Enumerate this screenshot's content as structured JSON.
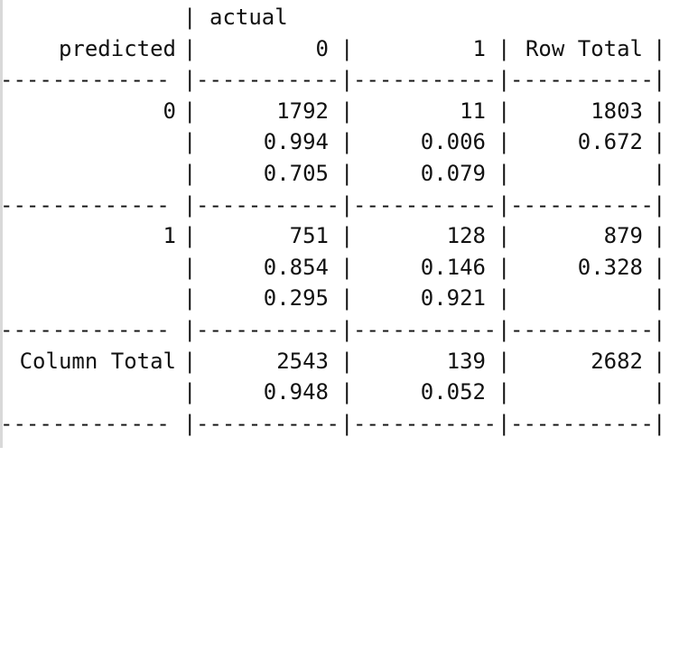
{
  "crosstab": {
    "header": {
      "actual_label": "actual",
      "predicted_label": "predicted",
      "col_0": "0",
      "col_1": "1",
      "row_total_label": "Row Total"
    },
    "rows": [
      {
        "label": "0",
        "counts": [
          "1792",
          "11",
          "1803"
        ],
        "row_props": [
          "0.994",
          "0.006",
          "0.672"
        ],
        "col_props": [
          "0.705",
          "0.079",
          ""
        ]
      },
      {
        "label": "1",
        "counts": [
          "751",
          "128",
          "879"
        ],
        "row_props": [
          "0.854",
          "0.146",
          "0.328"
        ],
        "col_props": [
          "0.295",
          "0.921",
          ""
        ]
      }
    ],
    "column_total": {
      "label": "Column Total",
      "counts": [
        "2543",
        "139",
        "2682"
      ],
      "props": [
        "0.948",
        "0.052",
        ""
      ]
    },
    "separator": {
      "c0": "-------------",
      "c1": "-----------",
      "c2": "-----------",
      "c3": "-----------"
    }
  }
}
